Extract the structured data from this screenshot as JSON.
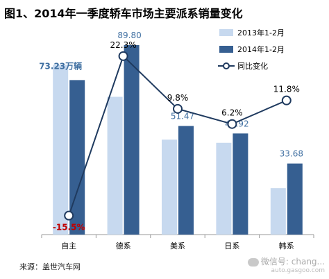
{
  "title": "图1、2014年一季度轿车市场主要派系销量变化",
  "source": "来源：盖世汽车网",
  "watermark": {
    "main": "微信号: chang...",
    "sub": "auto.gasgoo.com"
  },
  "colors": {
    "series_2013": "#c7d9ef",
    "series_2014": "#365f91",
    "change_line": "#1f3a5f",
    "negative_label": "#c00000",
    "value_label": "#3f6fa1"
  },
  "chart_data": {
    "type": "bar",
    "categories": [
      "自主",
      "德系",
      "美系",
      "日系",
      "韩系"
    ],
    "series": [
      {
        "name": "2013年1-2月",
        "values": [
          80.5,
          65.3,
          45.0,
          43.5,
          22.0
        ]
      },
      {
        "name": "2014年1-2月",
        "values": [
          73.23,
          89.8,
          51.47,
          47.92,
          33.68
        ]
      }
    ],
    "line_series": {
      "name": "同比变化",
      "values": [
        -15.5,
        22.3,
        9.8,
        6.2,
        11.8
      ]
    },
    "value_labels": [
      "73.23万辆",
      "89.80",
      "51.47",
      "47.92",
      "33.68"
    ],
    "change_labels": [
      "-15.5%",
      "22.3%",
      "9.8%",
      "6.2%",
      "11.8%"
    ],
    "ylim": [
      0,
      100
    ],
    "change_ylim": [
      -20,
      30
    ],
    "legend": {
      "position": "top-right",
      "entries": [
        "2013年1-2月",
        "2014年1-2月",
        "同比变化"
      ]
    },
    "grid": false
  }
}
